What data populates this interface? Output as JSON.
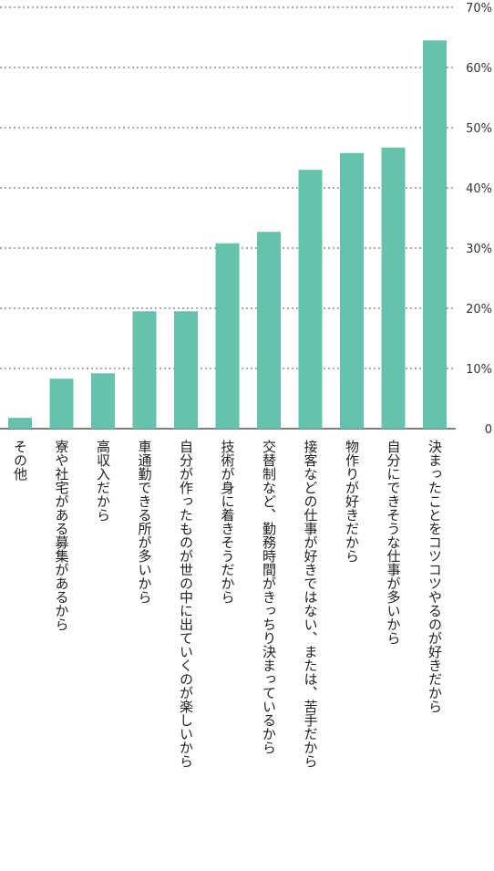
{
  "chart_data": {
    "type": "bar",
    "categories": [
      "その他",
      "寮や社宅がある募集があるから",
      "高収入だから",
      "車通勤できる所が多いから",
      "自分が作ったものが世の中に出ていくのが楽しいから",
      "技術が身に着きそうだから",
      "交替制など、勤務時間がきっちり決まっているから",
      "接客などの仕事が好きではない、または、苦手だから",
      "物作りが好きだから",
      "自分にできそうな仕事が多いから",
      "決まったことをコツコツやるのが好きだから"
    ],
    "values": [
      1.8,
      8.3,
      9.2,
      19.5,
      19.5,
      30.8,
      32.7,
      43.0,
      45.8,
      46.7,
      64.5
    ],
    "ylim": [
      0,
      70
    ],
    "yticks": [
      0,
      10,
      20,
      30,
      40,
      50,
      60,
      70
    ],
    "ytick_labels": [
      "0",
      "10%",
      "20%",
      "30%",
      "40%",
      "50%",
      "60%",
      "70%"
    ],
    "grid": true,
    "bar_color": "#66c2ab",
    "grid_color": "#555555",
    "axis_position": "right"
  }
}
